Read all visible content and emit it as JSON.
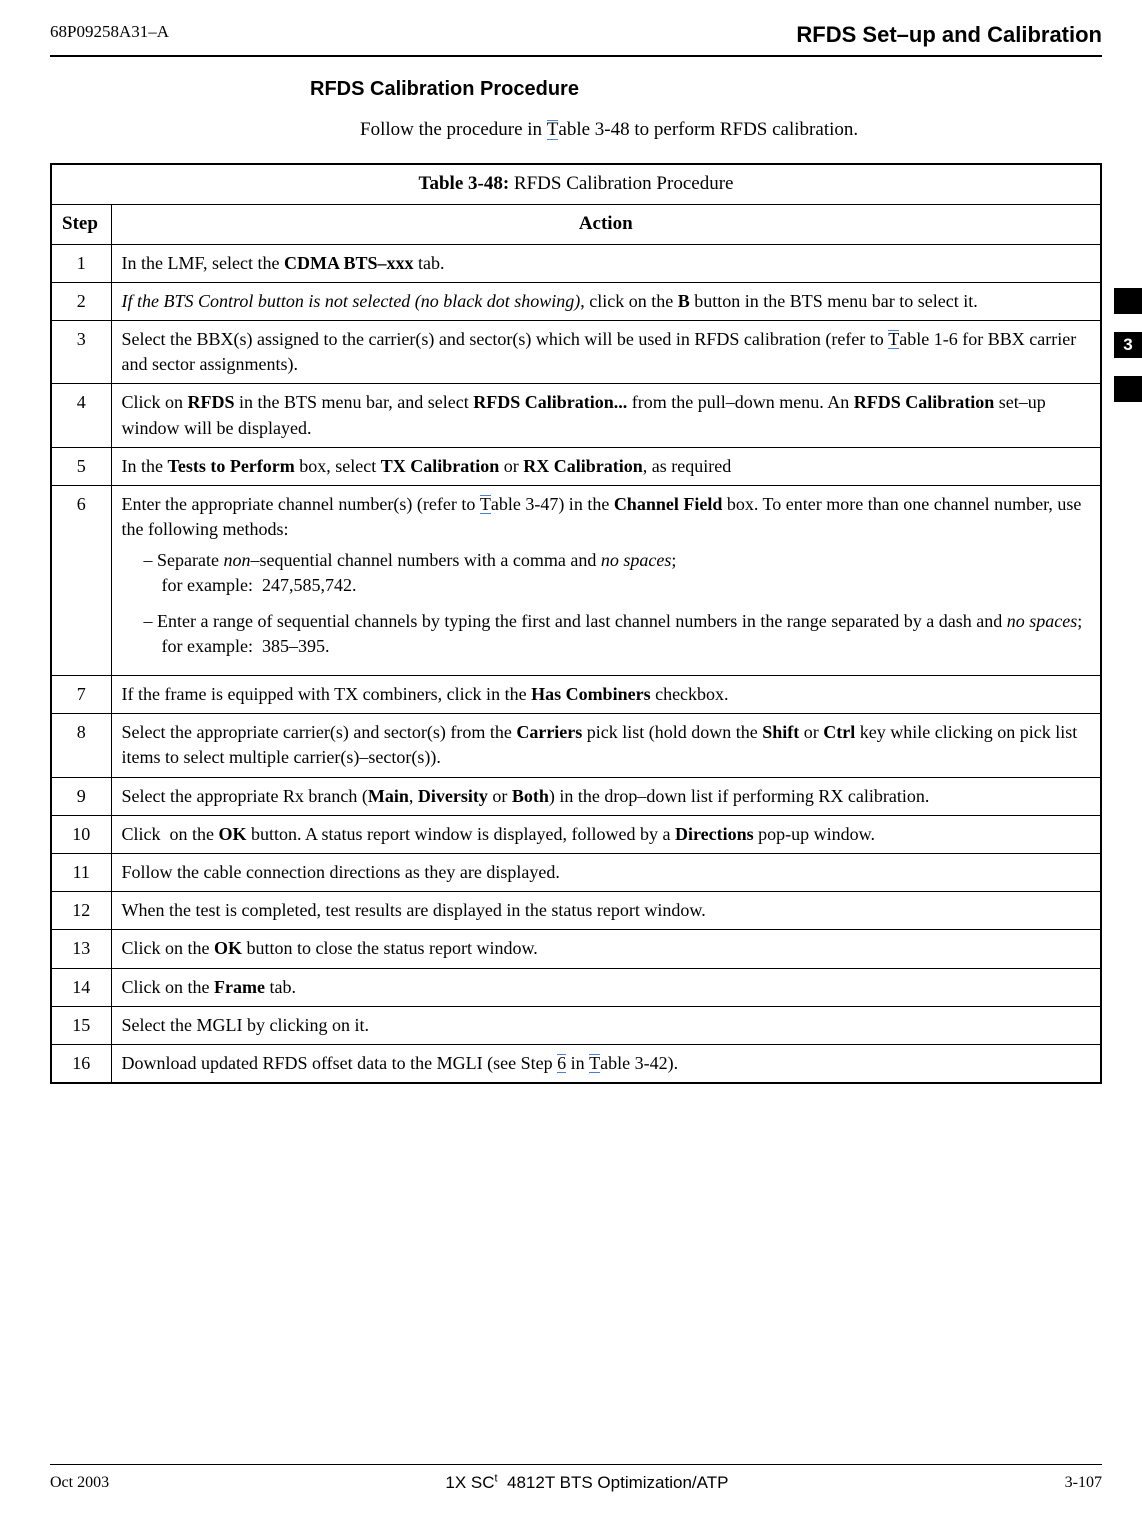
{
  "header": {
    "doc_id": "68P09258A31–A",
    "section_title": "RFDS Set–up and Calibration"
  },
  "side_tab": {
    "chapter": "3"
  },
  "heading": {
    "sub_heading": "RFDS Calibration Procedure",
    "intro_prefix": "Follow the procedure in ",
    "intro_link": "T",
    "intro_suffix": "able 3-48 to perform RFDS calibration."
  },
  "table": {
    "title_prefix": "Table 3-48: ",
    "title_text": "RFDS Calibration Procedure",
    "col_step": "Step",
    "col_action": "Action",
    "rows": [
      {
        "n": "1",
        "html": "In the LMF, select the <span class='bold'>CDMA BTS–xxx</span> tab."
      },
      {
        "n": "2",
        "html": "<span class='ital'>If the BTS Control button is not selected (no black dot showing)</span>, click on the <span class='bold'>B</span> button in the BTS menu bar to select it."
      },
      {
        "n": "3",
        "html": "Select the BBX(s) assigned to the carrier(s) and sector(s) which will be used in RFDS calibration (refer to <span class='link-line'>T</span>able 1-6 for BBX carrier and sector assignments)."
      },
      {
        "n": "4",
        "html": "Click on <span class='bold'>RFDS</span> in the BTS menu bar, and select <span class='bold'>RFDS Calibration...</span> from the pull–down menu. An <span class='bold'>RFDS Calibration</span> set–up window will be displayed."
      },
      {
        "n": "5",
        "html": "In the <span class='bold'>Tests to Perform</span> box, select <span class='bold'>TX Calibration</span> or <span class='bold'>RX Calibration</span>, as required"
      },
      {
        "n": "6",
        "html": "<p>Enter the appropriate channel number(s) (refer to <span class='link-line'>T</span>able 3-47) in the <span class='bold'>Channel Field</span> box. To enter more than one channel number, use the following methods:</p><ul><li>Separate <span class='ital'>non</span>–sequential channel numbers with a comma and <span class='ital'>no spaces</span>;<br>for example:&nbsp;&nbsp;247,585,742.</li><li>Enter a range of sequential channels by typing the first and last channel numbers in the range separated by a dash and <span class='ital'>no spaces</span>;<br>for example:&nbsp;&nbsp;385–395.</li></ul>"
      },
      {
        "n": "7",
        "html": "If the frame is equipped with TX combiners, click in the <span class='bold'>Has Combiners</span> checkbox."
      },
      {
        "n": "8",
        "html": "Select the appropriate carrier(s) and sector(s) from the <span class='bold'>Carriers</span> pick list (hold down the <span class='bold'>Shift</span> or <span class='bold'>Ctrl</span> key while clicking on pick list items to select multiple carrier(s)–sector(s))."
      },
      {
        "n": "9",
        "html": "Select the appropriate Rx branch (<span class='bold'>Main</span>, <span class='bold'>Diversity</span> or <span class='bold'>Both</span>) in the drop–down list if performing RX calibration."
      },
      {
        "n": "10",
        "html": "Click &nbsp;on the <span class='bold'>OK</span> button. A status report window is displayed, followed by a <span class='bold'>Directions</span> pop-up window."
      },
      {
        "n": "11",
        "html": "Follow the cable connection directions as they are displayed."
      },
      {
        "n": "12",
        "html": "When the test is completed, test results are displayed in the status report window."
      },
      {
        "n": "13",
        "html": "Click on the <span class='bold'>OK</span> button to close the status report window."
      },
      {
        "n": "14",
        "html": "Click on the <span class='bold'>Frame</span> tab."
      },
      {
        "n": "15",
        "html": "Select the MGLI by clicking on it."
      },
      {
        "n": "16",
        "html": "Download updated RFDS offset data to the MGLI (see Step <span class='link-line'>6</span> in <span class='link-line'>T</span>able 3-42)."
      }
    ]
  },
  "footer": {
    "left": "Oct 2003",
    "center": "1X SC™ 4812T BTS Optimization/ATP",
    "right": "3-107"
  }
}
